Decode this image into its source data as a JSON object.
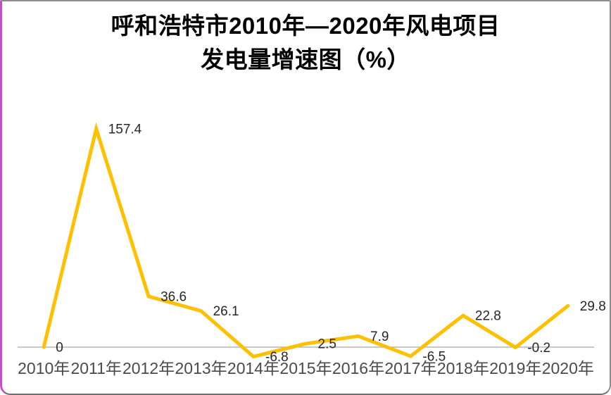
{
  "chart_data": {
    "type": "line",
    "title": "呼和浩特市2010年—2020年风电项目发电量增速图（%）",
    "title_lines": [
      "呼和浩特市2010年—2020年风电项目",
      "发电量增速图（%）"
    ],
    "categories": [
      "2010年",
      "2011年",
      "2012年",
      "2013年",
      "2014年",
      "2015年",
      "2016年",
      "2017年",
      "2018年",
      "2019年",
      "2020年"
    ],
    "values": [
      0,
      157.4,
      36.6,
      26.1,
      -6.8,
      2.5,
      7.9,
      -6.5,
      22.8,
      -0.2,
      29.8
    ],
    "point_labels": [
      "0",
      "157.4",
      "36.6",
      "26.1",
      "-6.8",
      "2.5",
      "7.9",
      "-6.5",
      "22.8",
      "-0.2",
      "29.8"
    ],
    "xlabel": "",
    "ylabel": "",
    "ylim": [
      -20,
      170
    ],
    "grid": false,
    "legend": "none",
    "colors": {
      "line": "#FFC000",
      "axis": "#a6a6a6",
      "point_label": "#262626",
      "tick_label": "#4a4a4a",
      "title": "#000000",
      "frame_border": "#8d8d8d",
      "left_stripe": "#c44fc4"
    }
  }
}
